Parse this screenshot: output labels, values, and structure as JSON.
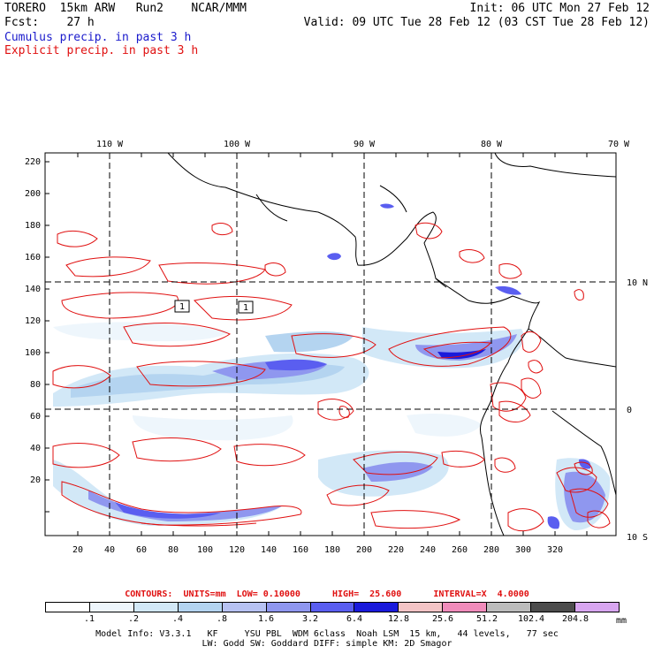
{
  "header": {
    "line1_left": "TORERO  15km ARW   Run2    NCAR/MMM",
    "line1_right": "Init: 06 UTC Mon 27 Feb 12",
    "line2_left": "Fcst:    27 h",
    "line2_right": "Valid: 09 UTC Tue 28 Feb 12 (03 CST Tue 28 Feb 12)",
    "line3": "Cumulus precip. in past 3 h",
    "line4": "Explicit precip. in past 3 h"
  },
  "map": {
    "top_lon_labels": [
      "110 W",
      "100 W",
      "90 W",
      "80 W",
      "70 W"
    ],
    "right_lat_labels": [
      "10 N",
      "0",
      "10 S"
    ],
    "left_grid_labels": [
      "220",
      "200",
      "180",
      "160",
      "140",
      "120",
      "100",
      "80",
      "60",
      "40",
      "20"
    ],
    "bottom_grid_labels": [
      "20",
      "40",
      "60",
      "80",
      "100",
      "120",
      "140",
      "160",
      "180",
      "200",
      "220",
      "240",
      "260",
      "280",
      "300",
      "320"
    ],
    "box_labels": [
      "1",
      "1"
    ]
  },
  "contours": {
    "text": "CONTOURS:  UNITS=mm  LOW= 0.10000      HIGH=  25.600      INTERVAL=X  4.0000"
  },
  "legend": {
    "labels": [
      ".1",
      ".2",
      ".4",
      ".8",
      "1.6",
      "3.2",
      "6.4",
      "12.8",
      "25.6",
      "51.2",
      "102.4",
      "204.8"
    ],
    "unit": "mm",
    "colors": [
      "#ffffff",
      "#eef6fc",
      "#d2e8f7",
      "#b4d4f0",
      "#b7c2f2",
      "#8f97ef",
      "#5a5ef0",
      "#1a1adb",
      "#f3c4c6",
      "#f08cbb",
      "#bcbcbc",
      "#4c4c4c",
      "#d8a6f0"
    ]
  },
  "model_info": {
    "line1": "Model Info: V3.3.1   KF     YSU PBL  WDM 6class  Noah LSM  15 km,   44 levels,   77 sec",
    "line2": "LW: Godd SW: Goddard DIFF: simple KM: 2D Smagor"
  }
}
